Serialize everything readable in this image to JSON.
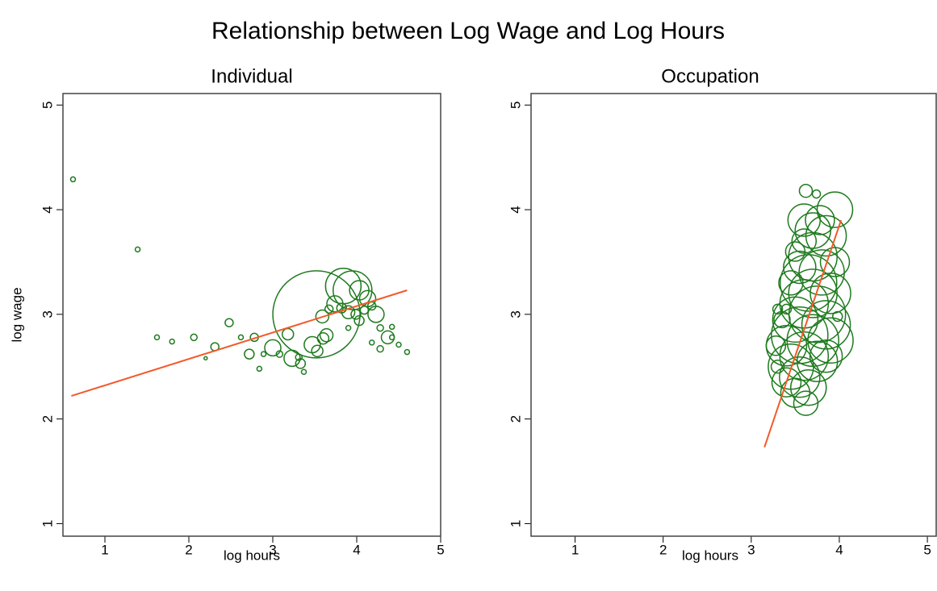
{
  "title": "Relationship between Log Wage and Log Hours",
  "chart_data": [
    {
      "type": "scatter",
      "title": "Individual",
      "x_label": "log hours",
      "y_label": "log wage",
      "xlim": [
        0.5,
        5
      ],
      "ylim": [
        0.88,
        5.11
      ],
      "xticks": [
        1,
        2,
        3,
        4,
        5
      ],
      "yticks": [
        1,
        2,
        3,
        4,
        5
      ],
      "color": "#1f7a1f",
      "x": [
        0.62,
        1.39,
        1.62,
        1.8,
        2.06,
        2.2,
        2.31,
        2.48,
        2.62,
        2.78,
        2.72,
        2.84,
        2.89,
        3.0,
        3.08,
        3.18,
        3.23,
        3.33,
        3.37,
        3.31,
        3.47,
        3.53,
        3.6,
        3.64,
        3.59,
        3.52,
        3.67,
        3.74,
        3.82,
        3.84,
        3.95,
        3.9,
        3.99,
        4.03,
        3.9,
        4.03,
        4.09,
        4.13,
        4.23,
        4.18,
        4.18,
        4.28,
        4.28,
        4.37,
        4.42,
        4.42,
        4.5,
        4.6
      ],
      "y": [
        4.29,
        3.62,
        2.78,
        2.74,
        2.78,
        2.58,
        2.69,
        2.92,
        2.78,
        2.78,
        2.62,
        2.48,
        2.62,
        2.68,
        2.62,
        2.81,
        2.58,
        2.53,
        2.45,
        2.59,
        2.71,
        2.65,
        2.77,
        2.8,
        2.98,
        3.0,
        3.05,
        3.1,
        3.06,
        3.27,
        3.23,
        3.02,
        3.0,
        2.94,
        2.87,
        3.23,
        3.04,
        3.15,
        3.0,
        3.08,
        2.73,
        2.67,
        2.87,
        2.78,
        2.88,
        2.78,
        2.71,
        2.64
      ],
      "sizes": [
        3,
        3,
        3,
        3,
        4,
        2,
        5,
        5,
        3,
        5,
        6,
        3,
        3,
        10,
        4,
        7,
        10,
        6,
        3,
        4,
        10,
        7,
        7,
        8,
        8,
        54,
        5,
        10,
        6,
        22,
        24,
        8,
        6,
        6,
        3,
        12,
        5,
        10,
        10,
        5,
        3,
        4,
        4,
        8,
        3,
        3,
        3,
        3
      ],
      "fit": {
        "color": "#f4592a",
        "x": [
          0.6,
          4.6
        ],
        "y": [
          2.22,
          3.23
        ]
      }
    },
    {
      "type": "scatter",
      "title": "Occupation",
      "x_label": "log hours",
      "xlim": [
        0.5,
        5.1
      ],
      "ylim": [
        0.88,
        5.11
      ],
      "xticks": [
        1,
        2,
        3,
        4,
        5
      ],
      "yticks": [
        1,
        2,
        3,
        4,
        5
      ],
      "color": "#1f7a1f",
      "x": [
        3.62,
        3.74,
        3.95,
        3.78,
        3.85,
        3.6,
        3.7,
        3.55,
        3.8,
        3.65,
        3.45,
        3.4,
        3.3,
        3.9,
        3.6,
        3.75,
        3.5,
        3.85,
        3.98,
        3.55,
        3.7,
        3.4,
        3.9,
        3.6,
        3.45,
        3.75,
        3.55,
        3.4,
        3.65,
        3.5,
        3.3,
        3.28,
        3.6,
        3.7,
        3.35,
        3.95,
        3.5,
        3.85,
        3.62,
        3.7
      ],
      "y": [
        4.18,
        4.15,
        4.0,
        3.9,
        3.75,
        3.7,
        3.55,
        3.45,
        3.4,
        3.3,
        3.3,
        3.05,
        3.05,
        3.2,
        3.1,
        3.0,
        2.95,
        2.9,
        2.98,
        2.8,
        2.75,
        2.7,
        2.75,
        2.6,
        2.5,
        2.55,
        2.4,
        2.35,
        2.3,
        2.25,
        2.5,
        2.7,
        3.9,
        3.8,
        2.95,
        3.5,
        3.6,
        2.6,
        2.15,
        3.2
      ],
      "sizes": [
        8,
        5,
        22,
        18,
        25,
        15,
        30,
        20,
        28,
        35,
        15,
        6,
        6,
        25,
        30,
        35,
        28,
        30,
        6,
        35,
        32,
        25,
        28,
        30,
        28,
        25,
        25,
        18,
        22,
        18,
        8,
        12,
        20,
        22,
        10,
        18,
        12,
        20,
        15,
        30
      ],
      "fit": {
        "color": "#f4592a",
        "x": [
          3.15,
          4.02
        ],
        "y": [
          1.73,
          3.9
        ]
      }
    }
  ]
}
